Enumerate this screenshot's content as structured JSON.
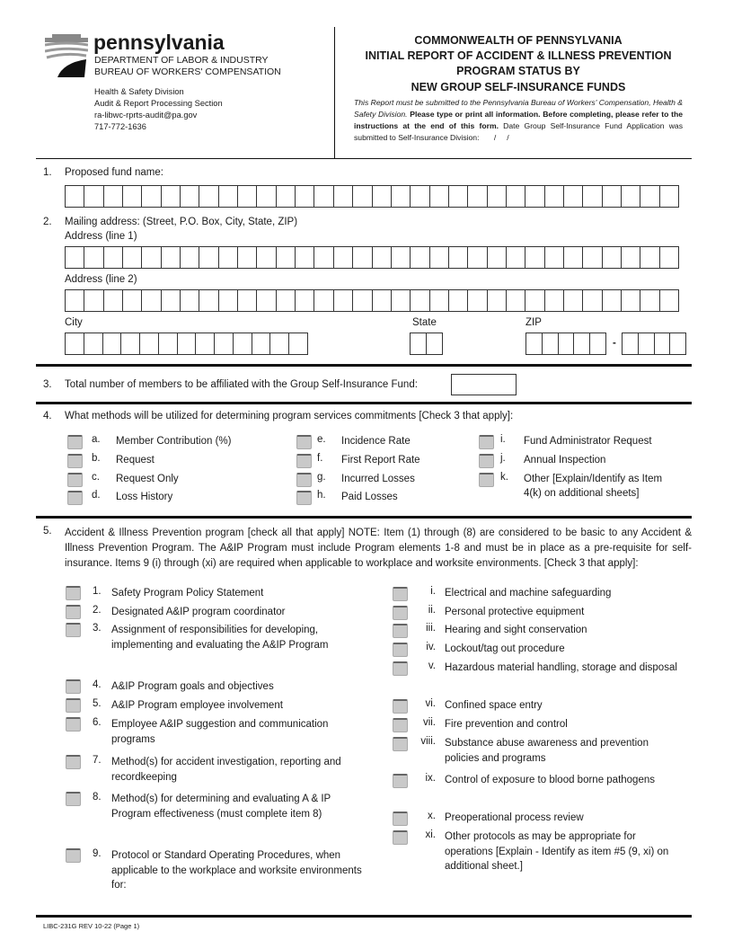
{
  "header": {
    "logo_text": "pennsylvania",
    "department": "DEPARTMENT OF LABOR & INDUSTRY",
    "bureau": "BUREAU OF WORKERS' COMPENSATION",
    "division": "Health & Safety Division",
    "section": "Audit & Report Processing Section",
    "email": "ra-libwc-rprts-audit@pa.gov",
    "phone": "717-772-1636",
    "title_lines": [
      "COMMONWEALTH OF PENNSYLVANIA",
      "INITIAL REPORT OF ACCIDENT & ILLNESS PREVENTION",
      "PROGRAM STATUS BY",
      "NEW GROUP SELF-INSURANCE FUNDS"
    ],
    "instr_italic": "This Report must be submitted to the Pennsylvania Bureau of Workers' Compensation, Health & Safety Division.",
    "instr_bold": "Please type or print all information. Before completing, please refer to the instructions at the end of this form.",
    "instr_date": "Date Group Self-Insurance Fund Application was submitted to Self-Insurance Division:",
    "date_slashes": "/     /"
  },
  "q1": {
    "num": "1.",
    "label": "Proposed fund name:"
  },
  "q2": {
    "num": "2.",
    "label": "Mailing address: (Street, P.O. Box, City, State, ZIP)",
    "line1": "Address (line 1)",
    "line2": "Address (line 2)",
    "city": "City",
    "state": "State",
    "zip": "ZIP",
    "dash": "-"
  },
  "q3": {
    "num": "3.",
    "label": "Total number of members to be affiliated with the Group Self-Insurance Fund:"
  },
  "q4": {
    "num": "4.",
    "label": "What methods will be utilized for determining program services commitments [Check 3 that apply]:",
    "items": [
      {
        "letter": "a.",
        "label": "Member Contribution (%)"
      },
      {
        "letter": "b.",
        "label": "Request"
      },
      {
        "letter": "c.",
        "label": "Request Only"
      },
      {
        "letter": "d.",
        "label": "Loss History"
      },
      {
        "letter": "e.",
        "label": "Incidence Rate"
      },
      {
        "letter": "f.",
        "label": "First Report Rate"
      },
      {
        "letter": "g.",
        "label": "Incurred Losses"
      },
      {
        "letter": "h.",
        "label": "Paid Losses"
      },
      {
        "letter": "i.",
        "label": "Fund Administrator Request"
      },
      {
        "letter": "j.",
        "label": "Annual Inspection"
      },
      {
        "letter": "k.",
        "label": "Other [Explain/Identify as Item 4(k) on additional sheets]"
      }
    ]
  },
  "q5": {
    "num": "5.",
    "text": "Accident & Illness Prevention program [check all that apply] NOTE: Item (1) through (8) are considered to be basic to any Accident & Illness Prevention Program. The A&IP Program must include Program elements 1-8 and must be in place as a pre-requisite for self-insurance. Items 9 (i) through (xi) are required when applicable to workplace and worksite environments. [Check 3 that apply]:",
    "left": [
      {
        "num": "1.",
        "label": "Safety Program Policy Statement"
      },
      {
        "num": "2.",
        "label": "Designated A&IP program coordinator"
      },
      {
        "num": "3.",
        "label": "Assignment of responsibilities for developing, implementing and evaluating the A&IP Program"
      },
      {
        "num": "4.",
        "label": "A&IP Program goals and objectives"
      },
      {
        "num": "5.",
        "label": "A&IP Program employee involvement"
      },
      {
        "num": "6.",
        "label": "Employee A&IP suggestion and communication programs"
      },
      {
        "num": "7.",
        "label": "Method(s) for accident investigation, reporting and recordkeeping"
      },
      {
        "num": "8.",
        "label": "Method(s) for determining and evaluating A & IP Program effectiveness (must complete item 8)"
      },
      {
        "num": "9.",
        "label": "Protocol or Standard Operating Procedures, when applicable to the workplace and worksite environments for:"
      }
    ],
    "right": [
      {
        "num": "i.",
        "label": "Electrical and machine safeguarding"
      },
      {
        "num": "ii.",
        "label": "Personal protective equipment"
      },
      {
        "num": "iii.",
        "label": "Hearing and sight conservation"
      },
      {
        "num": "iv.",
        "label": "Lockout/tag out procedure"
      },
      {
        "num": "v.",
        "label": "Hazardous material handling, storage and disposal"
      },
      {
        "num": "vi.",
        "label": "Confined space entry"
      },
      {
        "num": "vii.",
        "label": "Fire prevention and control"
      },
      {
        "num": "viii.",
        "label": "Substance abuse awareness and prevention policies and programs"
      },
      {
        "num": "ix.",
        "label": "Control of exposure to blood borne pathogens"
      },
      {
        "num": "x.",
        "label": "Preoperational process review"
      },
      {
        "num": "xi.",
        "label": "Other protocols as may be appropriate for operations [Explain - Identify as item #5 (9, xi) on additional sheet.]"
      }
    ]
  },
  "footer": {
    "form_id": "LIBC-231G REV 10-22 (Page 1)"
  }
}
